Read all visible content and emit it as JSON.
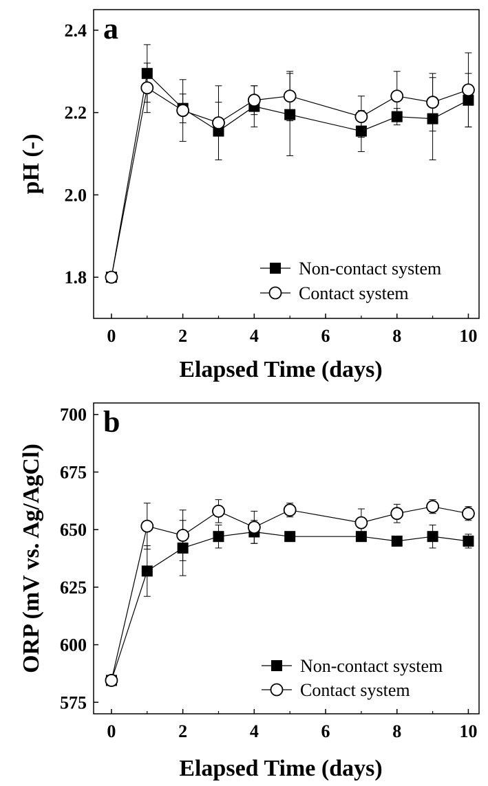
{
  "chart_data": [
    {
      "type": "line",
      "panel": "a",
      "xlabel": "Elapsed Time (days)",
      "ylabel": "pH (-)",
      "xlim": [
        -0.5,
        10.3
      ],
      "ylim": [
        1.7,
        2.45
      ],
      "xticks": [
        0,
        2,
        4,
        6,
        8,
        10
      ],
      "yticks": [
        1.8,
        2.0,
        2.2,
        2.4
      ],
      "ytick_labels": [
        "1.8",
        "2.0",
        "2.2",
        "2.4"
      ],
      "grid": false,
      "legend_position": "bottom-right",
      "series": [
        {
          "name": "Non-contact system",
          "marker": "filled-square",
          "x": [
            0,
            1,
            2,
            3,
            4,
            5,
            7,
            8,
            9,
            10
          ],
          "y": [
            1.8,
            2.295,
            2.21,
            2.155,
            2.215,
            2.195,
            2.155,
            2.19,
            2.185,
            2.23
          ],
          "error": [
            0.0,
            0.07,
            0.035,
            0.07,
            0.05,
            0.1,
            0.05,
            0.02,
            0.1,
            0.065
          ]
        },
        {
          "name": "Contact system",
          "marker": "open-circle",
          "x": [
            0,
            1,
            2,
            3,
            4,
            5,
            7,
            8,
            9,
            10
          ],
          "y": [
            1.8,
            2.26,
            2.205,
            2.175,
            2.23,
            2.24,
            2.19,
            2.24,
            2.225,
            2.255
          ],
          "error": [
            0.0,
            0.06,
            0.075,
            0.09,
            0.035,
            0.06,
            0.05,
            0.06,
            0.07,
            0.09
          ]
        }
      ]
    },
    {
      "type": "line",
      "panel": "b",
      "xlabel": "Elapsed Time (days)",
      "ylabel": "ORP (mV vs. Ag/AgCl)",
      "xlim": [
        -0.5,
        10.3
      ],
      "ylim": [
        570,
        705
      ],
      "xticks": [
        0,
        2,
        4,
        6,
        8,
        10
      ],
      "yticks": [
        575,
        600,
        625,
        650,
        675,
        700
      ],
      "ytick_labels": [
        "575",
        "600",
        "625",
        "650",
        "675",
        "700"
      ],
      "grid": false,
      "legend_position": "bottom-right",
      "series": [
        {
          "name": "Non-contact system",
          "marker": "filled-square",
          "x": [
            0,
            1,
            2,
            3,
            4,
            5,
            7,
            8,
            9,
            10
          ],
          "y": [
            584.5,
            632,
            642,
            647,
            649,
            647,
            647,
            645,
            647,
            645
          ],
          "error": [
            0,
            11,
            12,
            5,
            5,
            0,
            2,
            0,
            5,
            3
          ]
        },
        {
          "name": "Contact system",
          "marker": "open-circle",
          "x": [
            0,
            1,
            2,
            3,
            4,
            5,
            7,
            8,
            9,
            10
          ],
          "y": [
            584.5,
            651.5,
            647.5,
            658,
            651,
            658.5,
            653,
            657,
            660,
            657
          ],
          "error": [
            0,
            10,
            11,
            5,
            7,
            3,
            6,
            4,
            3,
            3
          ]
        }
      ]
    }
  ]
}
